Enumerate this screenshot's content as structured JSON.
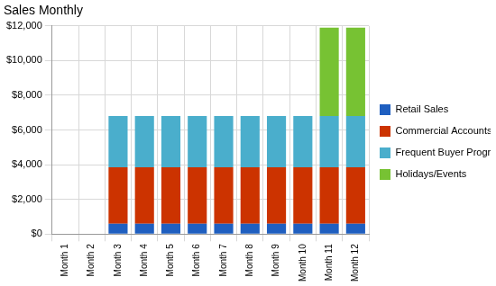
{
  "chart_data": {
    "type": "bar",
    "title": "Sales Monthly",
    "categories": [
      "Month 1",
      "Month 2",
      "Month 3",
      "Month 4",
      "Month 5",
      "Month 6",
      "Month 7",
      "Month 8",
      "Month 9",
      "Month 10",
      "Month 11",
      "Month 12"
    ],
    "series": [
      {
        "name": "Retail Sales",
        "color": "#1f5fc0",
        "values": [
          0,
          0,
          600,
          600,
          600,
          600,
          600,
          600,
          600,
          600,
          600,
          600
        ]
      },
      {
        "name": "Commercial Accounts",
        "color": "#cc3300",
        "values": [
          0,
          0,
          3250,
          3250,
          3250,
          3250,
          3250,
          3250,
          3250,
          3250,
          3250,
          3250
        ]
      },
      {
        "name": "Frequent Buyer Programs",
        "color": "#4aaecc",
        "values": [
          0,
          0,
          2950,
          2950,
          2950,
          2950,
          2950,
          2950,
          2950,
          2950,
          2950,
          2950
        ]
      },
      {
        "name": "Holidays/Events",
        "color": "#77c233",
        "values": [
          0,
          0,
          0,
          0,
          0,
          0,
          0,
          0,
          0,
          0,
          5100,
          5100
        ]
      }
    ],
    "stacked": true,
    "ylim": [
      0,
      12000
    ],
    "yticks": [
      {
        "value": 0,
        "label": "$0"
      },
      {
        "value": 2000,
        "label": "$2,000"
      },
      {
        "value": 4000,
        "label": "$4,000"
      },
      {
        "value": 6000,
        "label": "$6,000"
      },
      {
        "value": 8000,
        "label": "$8,000"
      },
      {
        "value": 10000,
        "label": "$10,000"
      },
      {
        "value": 12000,
        "label": "$12,000"
      }
    ],
    "grid": true,
    "legend": "right"
  }
}
